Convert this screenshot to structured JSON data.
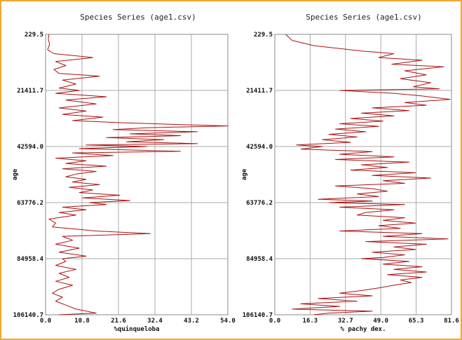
{
  "chart_data": [
    {
      "type": "line",
      "title": "Species Series (age1.csv)",
      "xlabel": "%quinqueloba",
      "ylabel": "age",
      "x_ticks": [
        "0.0",
        "10.8",
        "21.6",
        "32.4",
        "43.2",
        "54.0"
      ],
      "y_ticks": [
        "229.5",
        "21411.7",
        "42594.0",
        "63776.2",
        "84958.4",
        "106140.7"
      ],
      "xlim": [
        0,
        54.0
      ],
      "ylim": [
        229.5,
        106140.7
      ],
      "y_inverted": true,
      "grid": true,
      "series": [
        {
          "color": "#aa1111",
          "points": [
            [
              1,
              229.5
            ],
            [
              0.8,
              2000
            ],
            [
              1.2,
              4000
            ],
            [
              0.6,
              6000
            ],
            [
              2.5,
              7500
            ],
            [
              14,
              9000
            ],
            [
              3,
              10500
            ],
            [
              6,
              12000
            ],
            [
              2.5,
              13500
            ],
            [
              4,
              15000
            ],
            [
              16,
              16000
            ],
            [
              5,
              17500
            ],
            [
              9,
              19000
            ],
            [
              4,
              20500
            ],
            [
              10,
              21411.7
            ],
            [
              3,
              22500
            ],
            [
              18,
              23800
            ],
            [
              6,
              25000
            ],
            [
              15,
              26500
            ],
            [
              4,
              28000
            ],
            [
              12,
              29200
            ],
            [
              5,
              30500
            ],
            [
              17,
              31500
            ],
            [
              8,
              32800
            ],
            [
              22,
              33600
            ],
            [
              40,
              34300
            ],
            [
              54,
              34800
            ],
            [
              30,
              35500
            ],
            [
              20,
              36200
            ],
            [
              45,
              37000
            ],
            [
              25,
              37800
            ],
            [
              40,
              38500
            ],
            [
              18,
              39200
            ],
            [
              35,
              40000
            ],
            [
              24,
              40800
            ],
            [
              45,
              41500
            ],
            [
              12,
              42000
            ],
            [
              30,
              42594
            ],
            [
              10,
              43400
            ],
            [
              40,
              44400
            ],
            [
              8,
              45000
            ],
            [
              20,
              46000
            ],
            [
              3,
              47000
            ],
            [
              12,
              48000
            ],
            [
              6,
              49000
            ],
            [
              18,
              50000
            ],
            [
              5,
              51000
            ],
            [
              15,
              52000
            ],
            [
              9,
              53000
            ],
            [
              6,
              54000
            ],
            [
              12,
              55000
            ],
            [
              8,
              56000
            ],
            [
              16,
              57000
            ],
            [
              7,
              58000
            ],
            [
              14,
              59000
            ],
            [
              10,
              60000
            ],
            [
              22,
              61000
            ],
            [
              11,
              62000
            ],
            [
              25,
              63000
            ],
            [
              13,
              63776.2
            ],
            [
              18,
              64500
            ],
            [
              5,
              65500
            ],
            [
              12,
              66500
            ],
            [
              4,
              67500
            ],
            [
              9,
              68500
            ],
            [
              1,
              70000
            ],
            [
              3,
              71500
            ],
            [
              2,
              73000
            ],
            [
              15,
              74500
            ],
            [
              31,
              75500
            ],
            [
              5,
              76500
            ],
            [
              8,
              78000
            ],
            [
              3,
              79500
            ],
            [
              10,
              81000
            ],
            [
              4,
              82500
            ],
            [
              12,
              84000
            ],
            [
              5,
              84958.4
            ],
            [
              6,
              86000
            ],
            [
              3,
              87500
            ],
            [
              9,
              89000
            ],
            [
              4,
              90500
            ],
            [
              7,
              92000
            ],
            [
              3,
              93500
            ],
            [
              8,
              95000
            ],
            [
              4,
              96500
            ],
            [
              2,
              98000
            ],
            [
              5,
              99500
            ],
            [
              3,
              101000
            ],
            [
              6,
              102500
            ],
            [
              9,
              104000
            ],
            [
              15,
              105500
            ],
            [
              4,
              106140.7
            ]
          ]
        }
      ]
    },
    {
      "type": "line",
      "title": "Species Series (age1.csv)",
      "xlabel": "% pachy dex.",
      "ylabel": "age",
      "x_ticks": [
        "0.0",
        "16.3",
        "32.7",
        "49.0",
        "65.3",
        "81.6"
      ],
      "y_ticks": [
        "229.5",
        "21411.7",
        "42594.0",
        "63776.2",
        "84958.4",
        "106140.7"
      ],
      "xlim": [
        0,
        81.6
      ],
      "ylim": [
        229.5,
        106140.7
      ],
      "y_inverted": true,
      "grid": true,
      "series": [
        {
          "color": "#aa1111",
          "points": [
            [
              5,
              229.5
            ],
            [
              8,
              2500
            ],
            [
              18,
              4500
            ],
            [
              40,
              6500
            ],
            [
              55,
              7500
            ],
            [
              48,
              9000
            ],
            [
              68,
              10000
            ],
            [
              54,
              11500
            ],
            [
              78,
              12500
            ],
            [
              60,
              14000
            ],
            [
              70,
              15500
            ],
            [
              58,
              17000
            ],
            [
              72,
              18500
            ],
            [
              64,
              20000
            ],
            [
              76,
              20800
            ],
            [
              30,
              21411.7
            ],
            [
              55,
              22500
            ],
            [
              68,
              23500
            ],
            [
              81,
              24800
            ],
            [
              60,
              26000
            ],
            [
              70,
              27000
            ],
            [
              45,
              28000
            ],
            [
              62,
              29000
            ],
            [
              40,
              30000
            ],
            [
              55,
              31000
            ],
            [
              35,
              32000
            ],
            [
              50,
              33000
            ],
            [
              30,
              34000
            ],
            [
              48,
              35000
            ],
            [
              28,
              36000
            ],
            [
              42,
              37000
            ],
            [
              25,
              38000
            ],
            [
              38,
              39000
            ],
            [
              22,
              40000
            ],
            [
              35,
              41000
            ],
            [
              10,
              42000
            ],
            [
              22,
              42594
            ],
            [
              12,
              43600
            ],
            [
              45,
              44500
            ],
            [
              30,
              45500
            ],
            [
              55,
              46500
            ],
            [
              28,
              47500
            ],
            [
              62,
              48500
            ],
            [
              40,
              49500
            ],
            [
              52,
              50500
            ],
            [
              35,
              51500
            ],
            [
              65,
              52500
            ],
            [
              45,
              53500
            ],
            [
              72,
              54500
            ],
            [
              50,
              55500
            ],
            [
              60,
              56500
            ],
            [
              28,
              57500
            ],
            [
              45,
              58500
            ],
            [
              52,
              59500
            ],
            [
              38,
              60500
            ],
            [
              48,
              61500
            ],
            [
              20,
              62500
            ],
            [
              45,
              63200
            ],
            [
              25,
              63776.2
            ],
            [
              60,
              64500
            ],
            [
              30,
              65500
            ],
            [
              55,
              66500
            ],
            [
              42,
              67500
            ],
            [
              38,
              68500
            ],
            [
              60,
              69500
            ],
            [
              50,
              70500
            ],
            [
              65,
              71500
            ],
            [
              48,
              72500
            ],
            [
              58,
              73500
            ],
            [
              30,
              74500
            ],
            [
              68,
              75500
            ],
            [
              50,
              76500
            ],
            [
              80,
              77500
            ],
            [
              42,
              78500
            ],
            [
              70,
              79500
            ],
            [
              55,
              80500
            ],
            [
              65,
              81500
            ],
            [
              45,
              82500
            ],
            [
              60,
              83500
            ],
            [
              50,
              84500
            ],
            [
              40,
              84958.4
            ],
            [
              62,
              86000
            ],
            [
              50,
              87000
            ],
            [
              68,
              88000
            ],
            [
              55,
              89000
            ],
            [
              70,
              90000
            ],
            [
              52,
              91000
            ],
            [
              68,
              92000
            ],
            [
              58,
              93000
            ],
            [
              63,
              94000
            ],
            [
              55,
              95000
            ],
            [
              48,
              96000
            ],
            [
              40,
              97000
            ],
            [
              30,
              98000
            ],
            [
              45,
              99000
            ],
            [
              20,
              100000
            ],
            [
              38,
              101000
            ],
            [
              12,
              102000
            ],
            [
              30,
              103000
            ],
            [
              8,
              104000
            ],
            [
              45,
              104800
            ],
            [
              25,
              105500
            ],
            [
              18,
              106140.7
            ]
          ]
        }
      ]
    }
  ]
}
